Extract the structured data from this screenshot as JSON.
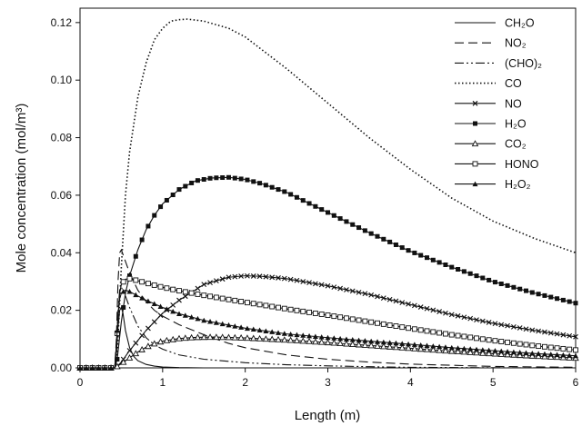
{
  "chart_data": {
    "type": "line",
    "title": "",
    "xlabel": "Length (m)",
    "ylabel": "Mole concentration (mol/m³)",
    "xlim": [
      0,
      6
    ],
    "ylim": [
      0,
      0.125
    ],
    "x_ticks": [
      "0",
      "1",
      "2",
      "3",
      "4",
      "5",
      "6"
    ],
    "y_ticks": [
      "0.00",
      "0.02",
      "0.04",
      "0.06",
      "0.08",
      "0.10",
      "0.12"
    ],
    "grid": false,
    "legend_position": "top-right",
    "series": [
      {
        "name": "CH₂O",
        "line": "solid",
        "marker": "none",
        "x": [
          0,
          0.42,
          0.44,
          0.46,
          0.48,
          0.5,
          0.52,
          0.55,
          0.6,
          0.65,
          0.7,
          0.8,
          0.9,
          1.0,
          1.2,
          1.5,
          2,
          3,
          4,
          5,
          6
        ],
        "y": [
          0,
          0,
          0.005,
          0.014,
          0.02,
          0.021,
          0.019,
          0.013,
          0.007,
          0.004,
          0.0025,
          0.0012,
          0.0006,
          0.0003,
          0.0001,
          0,
          0,
          0,
          0,
          0,
          0
        ]
      },
      {
        "name": "NO₂",
        "line": "dashed",
        "marker": "none",
        "x": [
          0,
          0.42,
          0.44,
          0.46,
          0.48,
          0.5,
          0.55,
          0.6,
          0.7,
          0.8,
          0.9,
          1.0,
          1.2,
          1.5,
          1.8,
          2.0,
          2.5,
          3,
          3.5,
          4,
          5,
          6
        ],
        "y": [
          0,
          0,
          0.01,
          0.03,
          0.04,
          0.041,
          0.037,
          0.033,
          0.027,
          0.023,
          0.02,
          0.018,
          0.015,
          0.0115,
          0.0085,
          0.007,
          0.0045,
          0.003,
          0.002,
          0.0013,
          0.0005,
          0.0002
        ]
      },
      {
        "name": "(CHO)₂",
        "line": "dashdotdot",
        "marker": "none",
        "x": [
          0,
          0.42,
          0.44,
          0.46,
          0.48,
          0.5,
          0.55,
          0.6,
          0.7,
          0.8,
          0.9,
          1.0,
          1.2,
          1.5,
          2.0,
          2.5,
          3,
          3.5,
          4,
          5,
          6
        ],
        "y": [
          0,
          0,
          0.008,
          0.02,
          0.027,
          0.028,
          0.025,
          0.021,
          0.0145,
          0.0105,
          0.008,
          0.0065,
          0.0045,
          0.003,
          0.0018,
          0.0011,
          0.0007,
          0.0004,
          0.0002,
          5e-05,
          0
        ]
      },
      {
        "name": "CO",
        "line": "dotted",
        "marker": "none",
        "x": [
          0,
          0.42,
          0.45,
          0.5,
          0.55,
          0.6,
          0.7,
          0.8,
          0.9,
          1.0,
          1.1,
          1.2,
          1.3,
          1.5,
          1.8,
          2.0,
          2.5,
          3.0,
          3.5,
          4.0,
          4.5,
          5.0,
          5.5,
          6.0
        ],
        "y": [
          0,
          0,
          0.004,
          0.035,
          0.06,
          0.075,
          0.094,
          0.106,
          0.114,
          0.118,
          0.1205,
          0.121,
          0.1212,
          0.1205,
          0.118,
          0.115,
          0.104,
          0.092,
          0.08,
          0.069,
          0.059,
          0.051,
          0.045,
          0.04
        ]
      },
      {
        "name": "NO",
        "line": "solid",
        "marker": "x",
        "x": [
          0,
          0.42,
          0.45,
          0.5,
          0.55,
          0.6,
          0.7,
          0.8,
          0.9,
          1.0,
          1.2,
          1.5,
          1.8,
          2.0,
          2.2,
          2.5,
          3.0,
          3.5,
          4.0,
          4.5,
          5.0,
          5.5,
          6.0
        ],
        "y": [
          0,
          0,
          0.0005,
          0.002,
          0.004,
          0.006,
          0.0095,
          0.013,
          0.016,
          0.019,
          0.0235,
          0.029,
          0.0315,
          0.032,
          0.0318,
          0.031,
          0.0285,
          0.0255,
          0.022,
          0.0185,
          0.0155,
          0.013,
          0.0108
        ]
      },
      {
        "name": "H₂O",
        "line": "solid",
        "marker": "square-filled",
        "x": [
          0,
          0.42,
          0.45,
          0.5,
          0.55,
          0.6,
          0.7,
          0.8,
          0.9,
          1.0,
          1.2,
          1.4,
          1.6,
          1.8,
          2.0,
          2.2,
          2.5,
          3.0,
          3.5,
          4.0,
          4.5,
          5.0,
          5.5,
          6.0
        ],
        "y": [
          0,
          0,
          0.003,
          0.016,
          0.026,
          0.032,
          0.041,
          0.048,
          0.053,
          0.057,
          0.062,
          0.065,
          0.066,
          0.0662,
          0.0655,
          0.064,
          0.061,
          0.054,
          0.047,
          0.0405,
          0.035,
          0.03,
          0.026,
          0.0225
        ]
      },
      {
        "name": "CO₂",
        "line": "solid",
        "marker": "triangle-open",
        "x": [
          0,
          0.42,
          0.45,
          0.5,
          0.6,
          0.7,
          0.8,
          0.9,
          1.0,
          1.2,
          1.4,
          1.6,
          1.8,
          2.0,
          2.5,
          3.0,
          3.5,
          4.0,
          4.5,
          5.0,
          5.5,
          6.0
        ],
        "y": [
          0,
          0,
          0.0005,
          0.0015,
          0.0035,
          0.0055,
          0.0072,
          0.0084,
          0.0093,
          0.0102,
          0.0106,
          0.0107,
          0.0106,
          0.0104,
          0.0097,
          0.0088,
          0.0078,
          0.0068,
          0.0058,
          0.0049,
          0.0041,
          0.0034
        ]
      },
      {
        "name": "HONO",
        "line": "solid",
        "marker": "square-open",
        "x": [
          0,
          0.42,
          0.44,
          0.46,
          0.48,
          0.5,
          0.55,
          0.6,
          0.7,
          0.8,
          1.0,
          1.2,
          1.5,
          2.0,
          2.5,
          3.0,
          3.5,
          4.0,
          4.5,
          5.0,
          5.5,
          6.0
        ],
        "y": [
          0,
          0,
          0.006,
          0.018,
          0.026,
          0.029,
          0.0308,
          0.031,
          0.0303,
          0.0295,
          0.028,
          0.0268,
          0.0252,
          0.0228,
          0.0205,
          0.0183,
          0.016,
          0.0137,
          0.0115,
          0.0095,
          0.0077,
          0.0062
        ]
      },
      {
        "name": "H₂O₂",
        "line": "solid",
        "marker": "triangle-filled",
        "x": [
          0,
          0.42,
          0.44,
          0.46,
          0.48,
          0.5,
          0.55,
          0.6,
          0.7,
          0.8,
          1.0,
          1.2,
          1.5,
          2.0,
          2.5,
          3.0,
          3.5,
          4.0,
          4.5,
          5.0,
          5.5,
          6.0
        ],
        "y": [
          0,
          0,
          0.008,
          0.018,
          0.024,
          0.026,
          0.027,
          0.0265,
          0.025,
          0.0235,
          0.021,
          0.0188,
          0.0165,
          0.0138,
          0.0118,
          0.0105,
          0.0093,
          0.0082,
          0.007,
          0.006,
          0.005,
          0.0042
        ]
      }
    ]
  }
}
